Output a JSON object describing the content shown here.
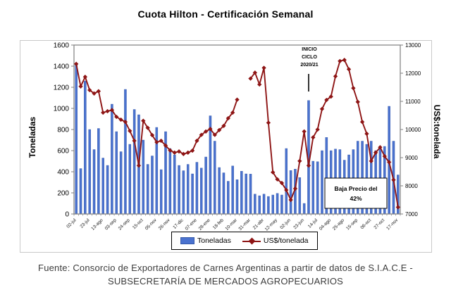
{
  "title": "Cuota Hilton - Certificación Semanal",
  "footer": {
    "line1": "Fuente:  Consorcio de Exportadores de Carnes Argentinas a partir de datos de S.I.A.C.E -",
    "line2": "SUBSECRETARÍA DE MERCADOS AGROPECUARIOS"
  },
  "legend": {
    "toneladas_label": "Toneladas",
    "usd_label": "US$/tonelada"
  },
  "annotations": {
    "inicio": {
      "lines": [
        "INICIO",
        "CICLO",
        "2020/21"
      ],
      "week_index": 53
    },
    "baja": {
      "line1": "Baja Precio del",
      "line2": "42%"
    }
  },
  "colors": {
    "bar": "#4a72cf",
    "bar_border": "#3558a8",
    "line": "#8e1515",
    "plot_border": "#7f7f7f",
    "tick_text": "#000000",
    "x_label_text": "#1a1a1a"
  },
  "chart_data": {
    "type": "bar+line",
    "title": "Cuota Hilton - Certificación Semanal",
    "weeks": 73,
    "x_tick_every": 3,
    "x_tick_labels": [
      "02-jul",
      "23-jul",
      "13-ago",
      "03-sep",
      "24-sep",
      "15-oct",
      "05-nov",
      "26-nov",
      "17-dic",
      "07-ene",
      "28-ene",
      "18-feb",
      "10-mar",
      "31-mar",
      "21-abr",
      "12-may",
      "02-jun",
      "23-jun",
      "14-jul",
      "04-ago",
      "25-ago",
      "15-sep",
      "06-oct",
      "27-oct",
      "17-nov"
    ],
    "ylabel_left": "Toneladas",
    "ylabel_right": "US$:tonelada",
    "yaxis_left": {
      "min": 0,
      "max": 1600,
      "step": 200
    },
    "yaxis_right": {
      "min": 7000,
      "max": 13000,
      "step": 1000
    },
    "series": [
      {
        "name": "Toneladas",
        "type": "bar",
        "axis": "left",
        "values": [
          1410,
          430,
          1260,
          800,
          610,
          810,
          530,
          460,
          1040,
          780,
          590,
          1180,
          660,
          990,
          940,
          700,
          470,
          550,
          820,
          420,
          780,
          620,
          560,
          460,
          410,
          470,
          380,
          490,
          435,
          540,
          930,
          690,
          440,
          390,
          310,
          455,
          325,
          405,
          380,
          378,
          188,
          173,
          188,
          166,
          180,
          195,
          180,
          620,
          412,
          425,
          345,
          100,
          1075,
          500,
          495,
          600,
          725,
          600,
          615,
          610,
          510,
          560,
          610,
          690,
          690,
          660,
          690,
          600,
          635,
          640,
          1020,
          690,
          370
        ]
      },
      {
        "name": "US$/tonelada",
        "type": "line",
        "axis": "right",
        "values": [
          12330,
          11530,
          11870,
          11400,
          11280,
          11360,
          10600,
          10650,
          10690,
          10450,
          10350,
          10270,
          9950,
          9600,
          8720,
          10310,
          10060,
          9800,
          9550,
          9600,
          9430,
          9260,
          9180,
          9220,
          9130,
          9180,
          9250,
          9600,
          9810,
          9930,
          10020,
          9810,
          9980,
          10130,
          10400,
          10600,
          11060,
          null,
          null,
          11810,
          12020,
          11600,
          12190,
          10240,
          8480,
          8230,
          8100,
          7850,
          7500,
          7900,
          8880,
          9930,
          8720,
          9720,
          10000,
          10730,
          11050,
          11170,
          11890,
          12430,
          12470,
          12140,
          11470,
          10980,
          10270,
          9850,
          8880,
          9180,
          9370,
          9050,
          8840,
          8210,
          7240
        ]
      }
    ]
  }
}
